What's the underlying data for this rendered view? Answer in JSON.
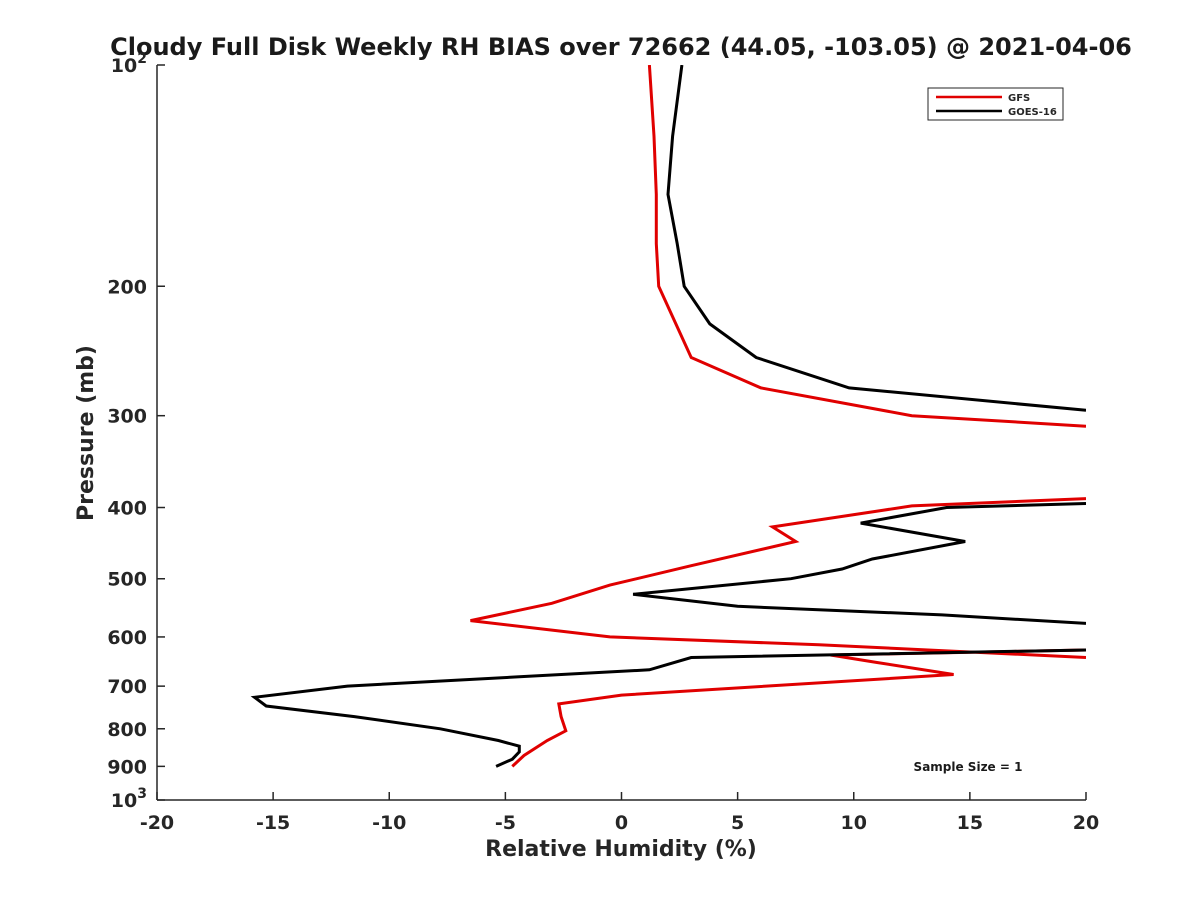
{
  "chart_data": {
    "type": "line",
    "title": "Cloudy Full Disk Weekly RH BIAS over 72662 (44.05, -103.05) @ 2021-04-06",
    "xlabel": "Relative Humidity (%)",
    "ylabel": "Pressure (mb)",
    "xlim": [
      -20,
      20
    ],
    "ylim": [
      100,
      1000
    ],
    "y_scale": "log",
    "y_reversed": true,
    "grid": false,
    "legend_position": "top-right",
    "x_ticks": [
      {
        "value": -20,
        "label": "-20"
      },
      {
        "value": -15,
        "label": "-15"
      },
      {
        "value": -10,
        "label": "-10"
      },
      {
        "value": -5,
        "label": "-5"
      },
      {
        "value": 0,
        "label": "0"
      },
      {
        "value": 5,
        "label": "5"
      },
      {
        "value": 10,
        "label": "10"
      },
      {
        "value": 15,
        "label": "15"
      },
      {
        "value": 20,
        "label": "20"
      }
    ],
    "y_ticks": [
      {
        "value": 100,
        "base": "10",
        "exp": "2"
      },
      {
        "value": 200,
        "base": "200",
        "exp": ""
      },
      {
        "value": 300,
        "base": "300",
        "exp": ""
      },
      {
        "value": 400,
        "base": "400",
        "exp": ""
      },
      {
        "value": 500,
        "base": "500",
        "exp": ""
      },
      {
        "value": 600,
        "base": "600",
        "exp": ""
      },
      {
        "value": 700,
        "base": "700",
        "exp": ""
      },
      {
        "value": 800,
        "base": "800",
        "exp": ""
      },
      {
        "value": 900,
        "base": "900",
        "exp": ""
      },
      {
        "value": 1000,
        "base": "10",
        "exp": "3"
      }
    ],
    "annotation": "Sample Size = 1",
    "series": [
      {
        "name": "GFS",
        "color": "#e00000",
        "points": [
          [
            1.2,
            100
          ],
          [
            1.4,
            125
          ],
          [
            1.5,
            150
          ],
          [
            1.5,
            175
          ],
          [
            1.6,
            200
          ],
          [
            3.0,
            250
          ],
          [
            6.0,
            275
          ],
          [
            12.5,
            300
          ],
          [
            20.0,
            310
          ],
          [
            null,
            null
          ],
          [
            20.0,
            389
          ],
          [
            12.5,
            398
          ],
          [
            6.5,
            425
          ],
          [
            7.5,
            445
          ],
          [
            3.0,
            480
          ],
          [
            -0.5,
            510
          ],
          [
            -3.0,
            540
          ],
          [
            -6.5,
            570
          ],
          [
            -0.5,
            600
          ],
          [
            8.5,
            615
          ],
          [
            20.0,
            640
          ],
          [
            null,
            null
          ],
          [
            20.0,
            625
          ],
          [
            9.0,
            635
          ],
          [
            11.0,
            650
          ],
          [
            14.3,
            675
          ],
          [
            0.0,
            720
          ],
          [
            -2.7,
            740
          ],
          [
            -2.6,
            770
          ],
          [
            -2.4,
            805
          ],
          [
            -3.2,
            830
          ],
          [
            -4.2,
            870
          ],
          [
            -4.7,
            900
          ]
        ]
      },
      {
        "name": "GOES-16",
        "color": "#000000",
        "points": [
          [
            2.6,
            100
          ],
          [
            2.2,
            125
          ],
          [
            2.0,
            150
          ],
          [
            2.4,
            175
          ],
          [
            2.7,
            200
          ],
          [
            3.8,
            225
          ],
          [
            5.8,
            250
          ],
          [
            9.8,
            275
          ],
          [
            20.0,
            295
          ],
          [
            null,
            null
          ],
          [
            20.0,
            395
          ],
          [
            14.0,
            400
          ],
          [
            10.3,
            420
          ],
          [
            14.8,
            445
          ],
          [
            10.8,
            470
          ],
          [
            9.5,
            485
          ],
          [
            7.3,
            500
          ],
          [
            0.5,
            525
          ],
          [
            5.0,
            545
          ],
          [
            13.8,
            560
          ],
          [
            20.0,
            575
          ],
          [
            null,
            null
          ],
          [
            20.0,
            625
          ],
          [
            3.0,
            640
          ],
          [
            1.2,
            665
          ],
          [
            -4.5,
            680
          ],
          [
            -11.8,
            700
          ],
          [
            -15.8,
            725
          ],
          [
            -15.3,
            745
          ],
          [
            -11.5,
            770
          ],
          [
            -7.8,
            800
          ],
          [
            -5.3,
            830
          ],
          [
            -4.4,
            845
          ],
          [
            -4.4,
            860
          ],
          [
            -4.7,
            880
          ],
          [
            -5.4,
            900
          ]
        ]
      }
    ]
  }
}
